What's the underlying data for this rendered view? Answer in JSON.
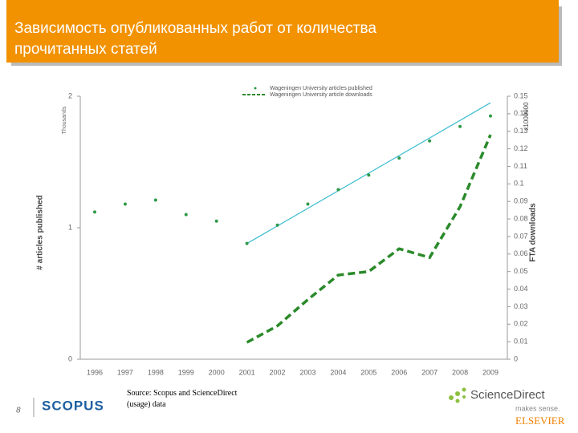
{
  "header": {
    "title_line1": "Зависимость опубликованных работ от количества",
    "title_line2": "прочитанных статей"
  },
  "chart_data": {
    "type": "line",
    "categories": [
      "1996",
      "1997",
      "1998",
      "1999",
      "2000",
      "2001",
      "2002",
      "2003",
      "2004",
      "2005",
      "2006",
      "2007",
      "2008",
      "2009"
    ],
    "ylabel": "# articles published",
    "yunit": "Thousands",
    "y2label": "FTA downloads",
    "y2unit": "x1000000",
    "ylim": [
      0,
      2
    ],
    "yticks": [
      0,
      1,
      2
    ],
    "y2lim": [
      0,
      0.15
    ],
    "y2ticks": [
      0,
      0.01,
      0.02,
      0.03,
      0.04,
      0.05,
      0.06,
      0.07,
      0.08,
      0.09,
      0.1,
      0.11,
      0.12,
      0.13,
      0.14,
      0.15
    ],
    "series": [
      {
        "name": "Wageningen University articles published",
        "color": "#2e9a4a",
        "style": "dots",
        "values": [
          1.12,
          1.18,
          1.21,
          1.1,
          1.05,
          0.88,
          1.02,
          1.18,
          1.29,
          1.4,
          1.53,
          1.66,
          1.77,
          1.85
        ]
      },
      {
        "name": "Wageningen University article downloads",
        "color": "#2a8a2a",
        "style": "dashed",
        "axis": "y2",
        "values": [
          null,
          null,
          null,
          null,
          null,
          0.0096,
          0.019,
          0.034,
          0.048,
          0.05,
          0.063,
          0.058,
          0.087,
          0.128
        ]
      }
    ],
    "trendline": {
      "color": "#3bbcd0",
      "x": [
        "2001",
        "2009"
      ],
      "values": [
        0.88,
        1.95
      ]
    }
  },
  "footer": {
    "page": "8",
    "logo": "SCOPUS",
    "source": "Source: Scopus and ScienceDirect (usage) data",
    "brand": "ScienceDirect",
    "tagline": "makes sense.",
    "publisher": "ELSEVIER"
  }
}
